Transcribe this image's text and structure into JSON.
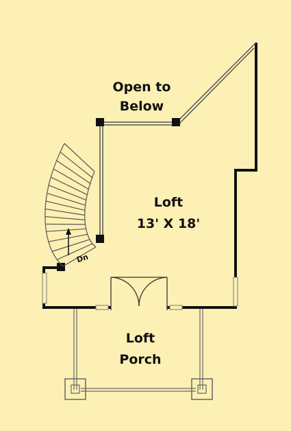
{
  "open_to_below": {
    "line1": "Open to",
    "line2": "Below"
  },
  "loft": {
    "name": "Loft",
    "dimensions": "13' X 18'"
  },
  "stair": {
    "direction_label": "Dn"
  },
  "porch": {
    "line1": "Loft",
    "line2": "Porch"
  },
  "colors": {
    "background": "#fdf0b4",
    "wall": "#111111",
    "thin_line": "#555555"
  }
}
